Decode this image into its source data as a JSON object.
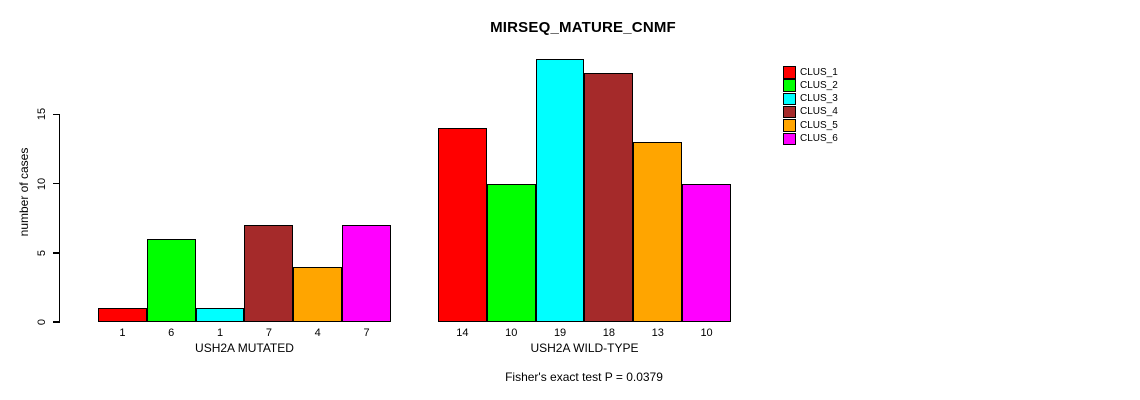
{
  "chart_data": {
    "type": "bar",
    "title": "MIRSEQ_MATURE_CNMF",
    "ylabel": "number of cases",
    "yticks": [
      0,
      5,
      10,
      15
    ],
    "ylim": [
      0,
      19.7
    ],
    "grid": false,
    "legend_position": "right",
    "series_labels": [
      "CLUS_1",
      "CLUS_2",
      "CLUS_3",
      "CLUS_4",
      "CLUS_5",
      "CLUS_6"
    ],
    "colors": [
      "#ff0000",
      "#00ff00",
      "#00ffff",
      "#a52a2a",
      "#ffa500",
      "#ff00ff"
    ],
    "groups": [
      {
        "label": "USH2A MUTATED",
        "values": [
          1,
          6,
          1,
          7,
          4,
          7
        ]
      },
      {
        "label": "USH2A WILD-TYPE",
        "values": [
          14,
          10,
          19,
          18,
          13,
          10
        ]
      }
    ],
    "annotation": "Fisher's exact test P = 0.0379"
  }
}
